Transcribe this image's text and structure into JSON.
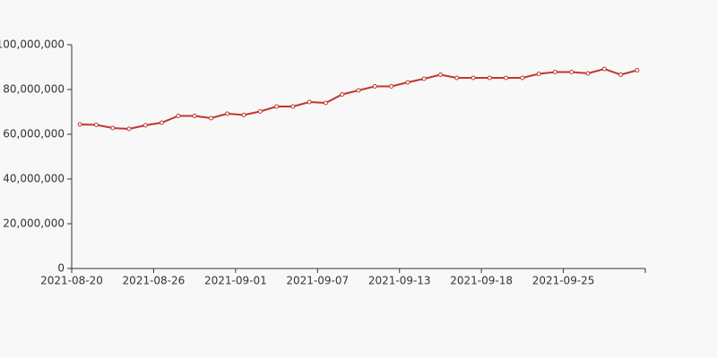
{
  "chart_data": {
    "type": "line",
    "categories": [
      "2021-08-20",
      null,
      null,
      null,
      null,
      "2021-08-26",
      null,
      null,
      null,
      null,
      "2021-09-01",
      null,
      null,
      null,
      null,
      "2021-09-07",
      null,
      null,
      null,
      null,
      "2021-09-13",
      null,
      null,
      null,
      null,
      "2021-09-18",
      null,
      null,
      null,
      null,
      "2021-09-25",
      null,
      null,
      null,
      null
    ],
    "values": [
      64400000,
      64200000,
      62800000,
      62400000,
      64000000,
      65200000,
      68200000,
      68200000,
      67200000,
      69200000,
      68600000,
      70200000,
      72400000,
      72400000,
      74400000,
      74000000,
      77800000,
      79600000,
      81400000,
      81400000,
      83200000,
      84800000,
      86600000,
      85200000,
      85200000,
      85200000,
      85200000,
      85200000,
      87000000,
      87800000,
      87800000,
      87200000,
      89200000,
      86600000,
      88600000
    ],
    "color": "#c23531",
    "ylim": [
      0,
      100000000
    ],
    "yticks": [
      0,
      {
        "value": 20000000,
        "label": "20,000,000"
      },
      {
        "value": 40000000,
        "label": "40,000,000"
      },
      {
        "value": 60000000,
        "label": "60,000,000"
      },
      {
        "value": 80000000,
        "label": "80,000,000"
      },
      {
        "value": 100000000,
        "label": "100,000,000"
      }
    ],
    "grid": false
  }
}
